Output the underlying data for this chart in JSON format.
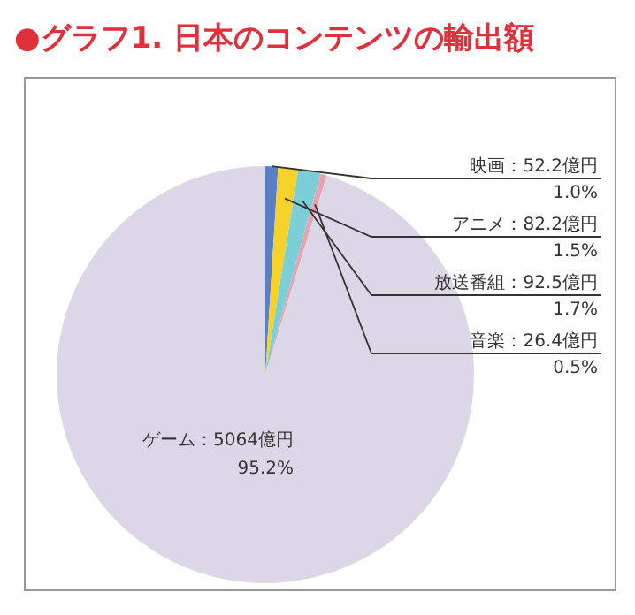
{
  "chart_data": {
    "type": "pie",
    "title": "●グラフ1. 日本のコンテンツの輸出額",
    "categories": [
      "映画",
      "アニメ",
      "放送番組",
      "音楽",
      "ゲーム"
    ],
    "values": [
      52.2,
      82.2,
      92.5,
      26.4,
      5064
    ],
    "colors": [
      "#5b7fc4",
      "#f4d22a",
      "#7ccfd6",
      "#e6a3b4",
      "#dcd7e6"
    ],
    "value_labels": [
      "：52.2億円\n1.0%",
      "：82.2億円\n1.5%",
      "：92.5億円\n1.7%",
      "：26.4億円\n0.5%",
      "：5064億円\n95.2%"
    ]
  }
}
